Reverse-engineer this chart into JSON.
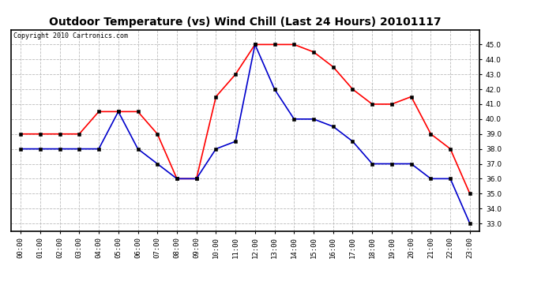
{
  "title": "Outdoor Temperature (vs) Wind Chill (Last 24 Hours) 20101117",
  "copyright": "Copyright 2010 Cartronics.com",
  "hours": [
    "00:00",
    "01:00",
    "02:00",
    "03:00",
    "04:00",
    "05:00",
    "06:00",
    "07:00",
    "08:00",
    "09:00",
    "10:00",
    "11:00",
    "12:00",
    "13:00",
    "14:00",
    "15:00",
    "16:00",
    "17:00",
    "18:00",
    "19:00",
    "20:00",
    "21:00",
    "22:00",
    "23:00"
  ],
  "temp": [
    39.0,
    39.0,
    39.0,
    39.0,
    40.5,
    40.5,
    40.5,
    39.0,
    36.0,
    36.0,
    41.5,
    43.0,
    45.0,
    45.0,
    45.0,
    44.5,
    43.5,
    42.0,
    41.0,
    41.0,
    41.5,
    39.0,
    38.0,
    35.0
  ],
  "windchill": [
    38.0,
    38.0,
    38.0,
    38.0,
    38.0,
    40.5,
    38.0,
    37.0,
    36.0,
    36.0,
    38.0,
    38.5,
    45.0,
    42.0,
    40.0,
    40.0,
    39.5,
    38.5,
    37.0,
    37.0,
    37.0,
    36.0,
    36.0,
    33.0
  ],
  "temp_color": "#ff0000",
  "windchill_color": "#0000cc",
  "ylim": [
    32.5,
    46.0
  ],
  "yticks": [
    33.0,
    34.0,
    35.0,
    36.0,
    37.0,
    38.0,
    39.0,
    40.0,
    41.0,
    42.0,
    43.0,
    44.0,
    45.0
  ],
  "bg_color": "#ffffff",
  "plot_bg_color": "#ffffff",
  "grid_color": "#bbbbbb",
  "title_fontsize": 10,
  "tick_fontsize": 6.5,
  "copyright_fontsize": 6,
  "marker": "s",
  "marker_size": 3,
  "linewidth": 1.2
}
